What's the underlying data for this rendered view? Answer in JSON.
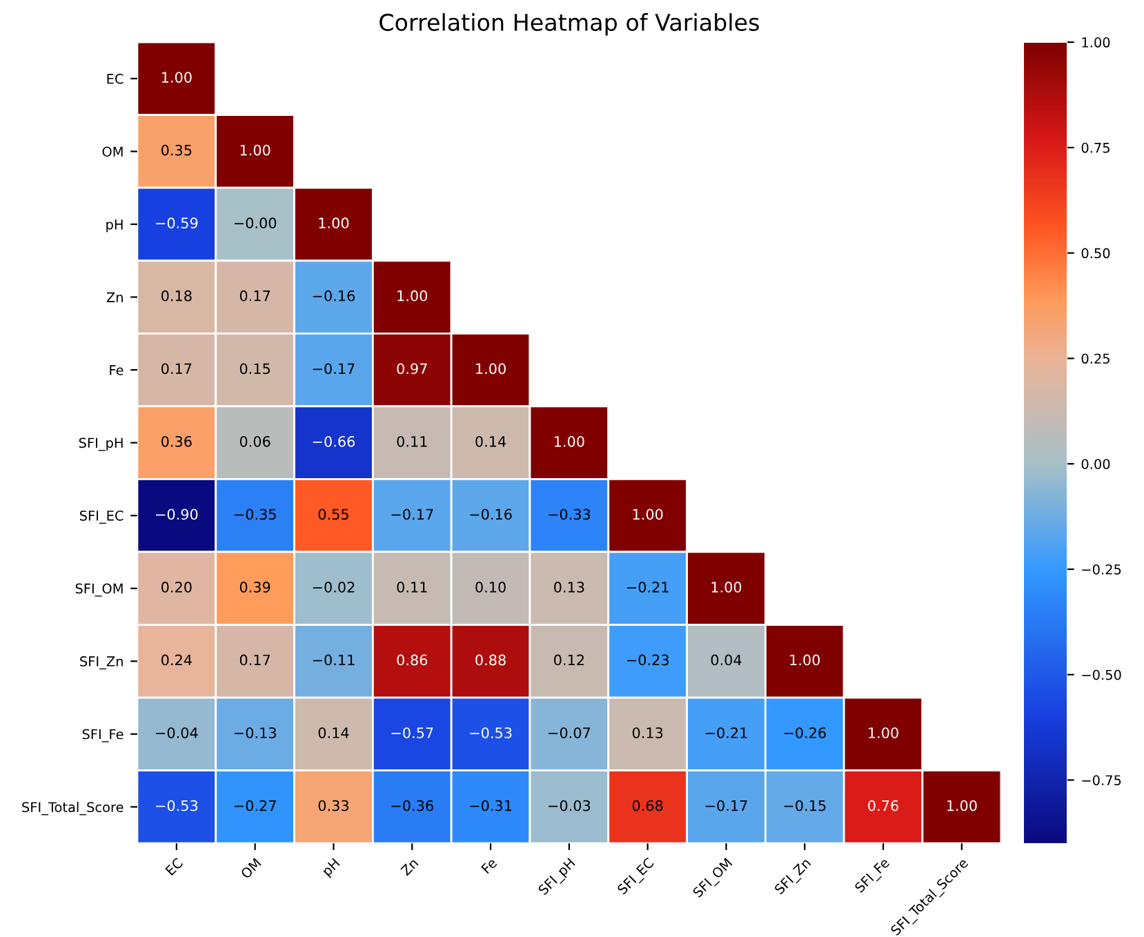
{
  "chart_data": {
    "type": "heatmap",
    "title": "Correlation Heatmap of Variables",
    "categories": [
      "EC",
      "OM",
      "pH",
      "Zn",
      "Fe",
      "SFI_pH",
      "SFI_EC",
      "SFI_OM",
      "SFI_Zn",
      "SFI_Fe",
      "SFI_Total_Score"
    ],
    "y_categories": [
      "EC",
      "OM",
      "pH",
      "Zn",
      "Fe",
      "SFI_pH",
      "SFI_EC",
      "SFI_OM",
      "SFI_Zn",
      "SFI_Fe",
      "SFI_Total_Score"
    ],
    "cells": [
      [
        1.0,
        null,
        null,
        null,
        null,
        null,
        null,
        null,
        null,
        null,
        null
      ],
      [
        0.35,
        1.0,
        null,
        null,
        null,
        null,
        null,
        null,
        null,
        null,
        null
      ],
      [
        -0.59,
        -0.0,
        1.0,
        null,
        null,
        null,
        null,
        null,
        null,
        null,
        null
      ],
      [
        0.18,
        0.17,
        -0.16,
        1.0,
        null,
        null,
        null,
        null,
        null,
        null,
        null
      ],
      [
        0.17,
        0.15,
        -0.17,
        0.97,
        1.0,
        null,
        null,
        null,
        null,
        null,
        null
      ],
      [
        0.36,
        0.06,
        -0.66,
        0.11,
        0.14,
        1.0,
        null,
        null,
        null,
        null,
        null
      ],
      [
        -0.9,
        -0.35,
        0.55,
        -0.17,
        -0.16,
        -0.33,
        1.0,
        null,
        null,
        null,
        null
      ],
      [
        0.2,
        0.39,
        -0.02,
        0.11,
        0.1,
        0.13,
        -0.21,
        1.0,
        null,
        null,
        null
      ],
      [
        0.24,
        0.17,
        -0.11,
        0.86,
        0.88,
        0.12,
        -0.23,
        0.04,
        1.0,
        null,
        null
      ],
      [
        -0.04,
        -0.13,
        0.14,
        -0.57,
        -0.53,
        -0.07,
        0.13,
        -0.21,
        -0.26,
        1.0,
        null
      ],
      [
        -0.53,
        -0.27,
        0.33,
        -0.36,
        -0.31,
        -0.03,
        0.68,
        -0.17,
        -0.15,
        0.76,
        1.0
      ]
    ],
    "cell_labels": [
      [
        "1.00",
        null,
        null,
        null,
        null,
        null,
        null,
        null,
        null,
        null,
        null
      ],
      [
        "0.35",
        "1.00",
        null,
        null,
        null,
        null,
        null,
        null,
        null,
        null,
        null
      ],
      [
        "−0.59",
        "−0.00",
        "1.00",
        null,
        null,
        null,
        null,
        null,
        null,
        null,
        null
      ],
      [
        "0.18",
        "0.17",
        "−0.16",
        "1.00",
        null,
        null,
        null,
        null,
        null,
        null,
        null
      ],
      [
        "0.17",
        "0.15",
        "−0.17",
        "0.97",
        "1.00",
        null,
        null,
        null,
        null,
        null,
        null
      ],
      [
        "0.36",
        "0.06",
        "−0.66",
        "0.11",
        "0.14",
        "1.00",
        null,
        null,
        null,
        null,
        null
      ],
      [
        "−0.90",
        "−0.35",
        "0.55",
        "−0.17",
        "−0.16",
        "−0.33",
        "1.00",
        null,
        null,
        null,
        null
      ],
      [
        "0.20",
        "0.39",
        "−0.02",
        "0.11",
        "0.10",
        "0.13",
        "−0.21",
        "1.00",
        null,
        null,
        null
      ],
      [
        "0.24",
        "0.17",
        "−0.11",
        "0.86",
        "0.88",
        "0.12",
        "−0.23",
        "0.04",
        "1.00",
        null,
        null
      ],
      [
        "−0.04",
        "−0.13",
        "0.14",
        "−0.57",
        "−0.53",
        "−0.07",
        "0.13",
        "−0.21",
        "−0.26",
        "1.00",
        null
      ],
      [
        "−0.53",
        "−0.27",
        "0.33",
        "−0.36",
        "−0.31",
        "−0.03",
        "0.68",
        "−0.17",
        "−0.15",
        "0.76",
        "1.00"
      ]
    ],
    "clim": [
      -0.9,
      1.0
    ],
    "cticks": [
      {
        "value": -0.75,
        "label": "−0.75"
      },
      {
        "value": -0.5,
        "label": "−0.50"
      },
      {
        "value": -0.25,
        "label": "−0.25"
      },
      {
        "value": 0,
        "label": "0.00"
      },
      {
        "value": 0.25,
        "label": "0.25"
      },
      {
        "value": 0.5,
        "label": "0.50"
      },
      {
        "value": 0.75,
        "label": "0.75"
      },
      {
        "value": 1.0,
        "label": "1.00"
      }
    ]
  }
}
